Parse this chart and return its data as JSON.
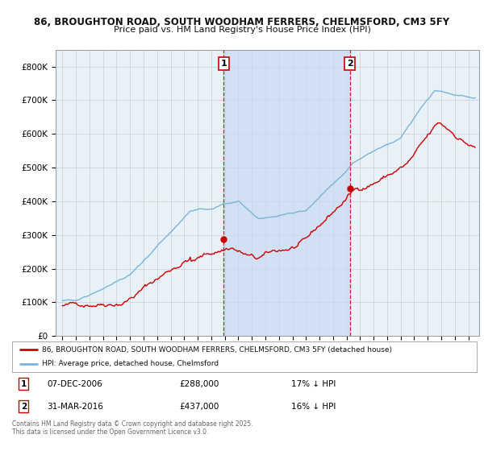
{
  "title_line1": "86, BROUGHTON ROAD, SOUTH WOODHAM FERRERS, CHELMSFORD, CM3 5FY",
  "title_line2": "Price paid vs. HM Land Registry's House Price Index (HPI)",
  "background_color": "#ffffff",
  "plot_bg_color": "#e8f0f8",
  "grid_color": "#cccccc",
  "shade_color": "#c8daf0",
  "hpi_color": "#7ab4d8",
  "price_color": "#cc0000",
  "vline_color": "#cc0000",
  "marker1_x": 2006.92,
  "marker1_y": 288000,
  "marker2_x": 2016.25,
  "marker2_y": 437000,
  "legend_line1": "86, BROUGHTON ROAD, SOUTH WOODHAM FERRERS, CHELMSFORD, CM3 5FY (detached house)",
  "legend_line2": "HPI: Average price, detached house, Chelmsford",
  "footer": "Contains HM Land Registry data © Crown copyright and database right 2025.\nThis data is licensed under the Open Government Licence v3.0.",
  "ylim": [
    0,
    850000
  ],
  "yticks": [
    0,
    100000,
    200000,
    300000,
    400000,
    500000,
    600000,
    700000,
    800000
  ],
  "ytick_labels": [
    "£0",
    "£100K",
    "£200K",
    "£300K",
    "£400K",
    "£500K",
    "£600K",
    "£700K",
    "£800K"
  ],
  "xlim": [
    1994.5,
    2025.8
  ],
  "xticks": [
    1995,
    1996,
    1997,
    1998,
    1999,
    2000,
    2001,
    2002,
    2003,
    2004,
    2005,
    2006,
    2007,
    2008,
    2009,
    2010,
    2011,
    2012,
    2013,
    2014,
    2015,
    2016,
    2017,
    2018,
    2019,
    2020,
    2021,
    2022,
    2023,
    2024,
    2025
  ]
}
